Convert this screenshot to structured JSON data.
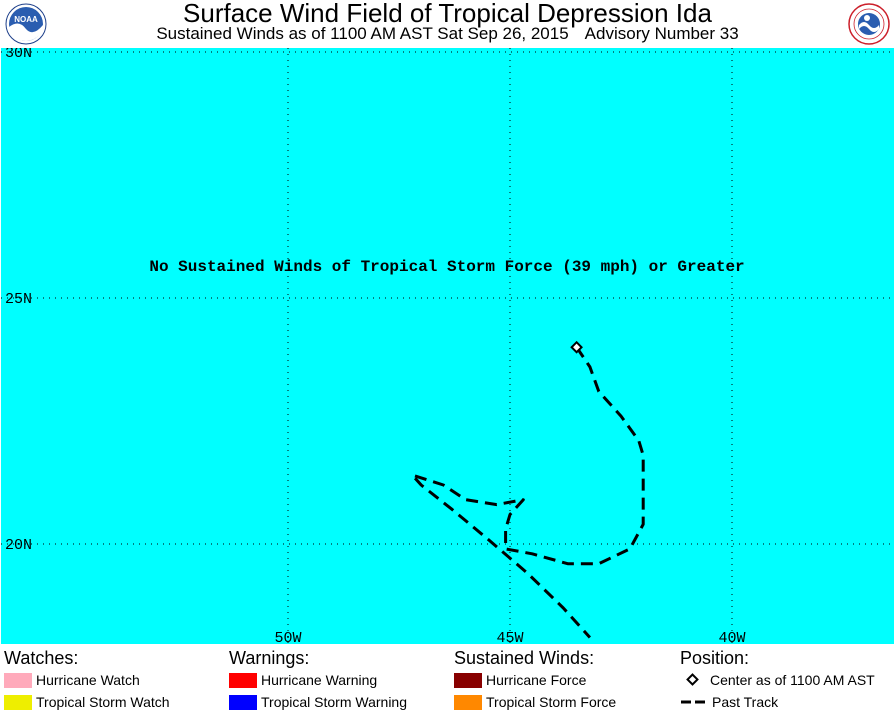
{
  "header": {
    "title": "Surface Wind Field of Tropical Depression Ida",
    "subtitle_time": "Sustained Winds as of 1100 AM AST Sat Sep 26, 2015",
    "subtitle_advisory": "Advisory Number 33",
    "left_logo_text": "NOAA",
    "left_logo_icon": "noaa-logo-icon",
    "right_logo_icon": "national-weather-service-logo-icon"
  },
  "map": {
    "ocean_color": "#00ffff",
    "message": "No Sustained Winds of Tropical Storm Force (39 mph) or Greater",
    "lat_labels": [
      "30N",
      "25N",
      "20N"
    ],
    "lon_labels": [
      "50W",
      "45W",
      "40W"
    ],
    "center_position": {
      "lon": -43.5,
      "lat": 24.0
    },
    "past_track": [
      [
        -43.5,
        24.0
      ],
      [
        -43.2,
        23.6
      ],
      [
        -43.0,
        23.1
      ],
      [
        -42.5,
        22.6
      ],
      [
        -42.1,
        22.1
      ],
      [
        -42.0,
        21.8
      ],
      [
        -42.0,
        21.3
      ],
      [
        -42.0,
        20.8
      ],
      [
        -42.0,
        20.4
      ],
      [
        -42.3,
        19.9
      ],
      [
        -43.0,
        19.6
      ],
      [
        -43.7,
        19.6
      ],
      [
        -44.5,
        19.8
      ],
      [
        -45.1,
        19.9
      ],
      [
        -45.1,
        20.3
      ],
      [
        -45.0,
        20.6
      ],
      [
        -44.7,
        20.9
      ],
      [
        -45.3,
        20.8
      ],
      [
        -46.0,
        20.9
      ],
      [
        -46.5,
        21.2
      ],
      [
        -47.2,
        21.4
      ],
      [
        -47.0,
        21.2
      ],
      [
        -46.3,
        20.7
      ],
      [
        -45.5,
        20.1
      ],
      [
        -44.6,
        19.4
      ],
      [
        -43.8,
        18.7
      ],
      [
        -43.2,
        18.1
      ]
    ]
  },
  "legend": {
    "watches": {
      "heading": "Watches:",
      "items": [
        {
          "label": "Hurricane Watch",
          "color": "#ffaabb"
        },
        {
          "label": "Tropical Storm Watch",
          "color": "#eeee00"
        }
      ]
    },
    "warnings": {
      "heading": "Warnings:",
      "items": [
        {
          "label": "Hurricane Warning",
          "color": "#ff0000"
        },
        {
          "label": "Tropical Storm Warning",
          "color": "#0000ff"
        }
      ]
    },
    "sustained_winds": {
      "heading": "Sustained Winds:",
      "items": [
        {
          "label": "Hurricane Force",
          "color": "#880000"
        },
        {
          "label": "Tropical Storm Force",
          "color": "#ff8800"
        }
      ]
    },
    "position": {
      "heading": "Position:",
      "center_label": "Center as of 1100 AM AST",
      "track_label": "Past Track"
    }
  }
}
